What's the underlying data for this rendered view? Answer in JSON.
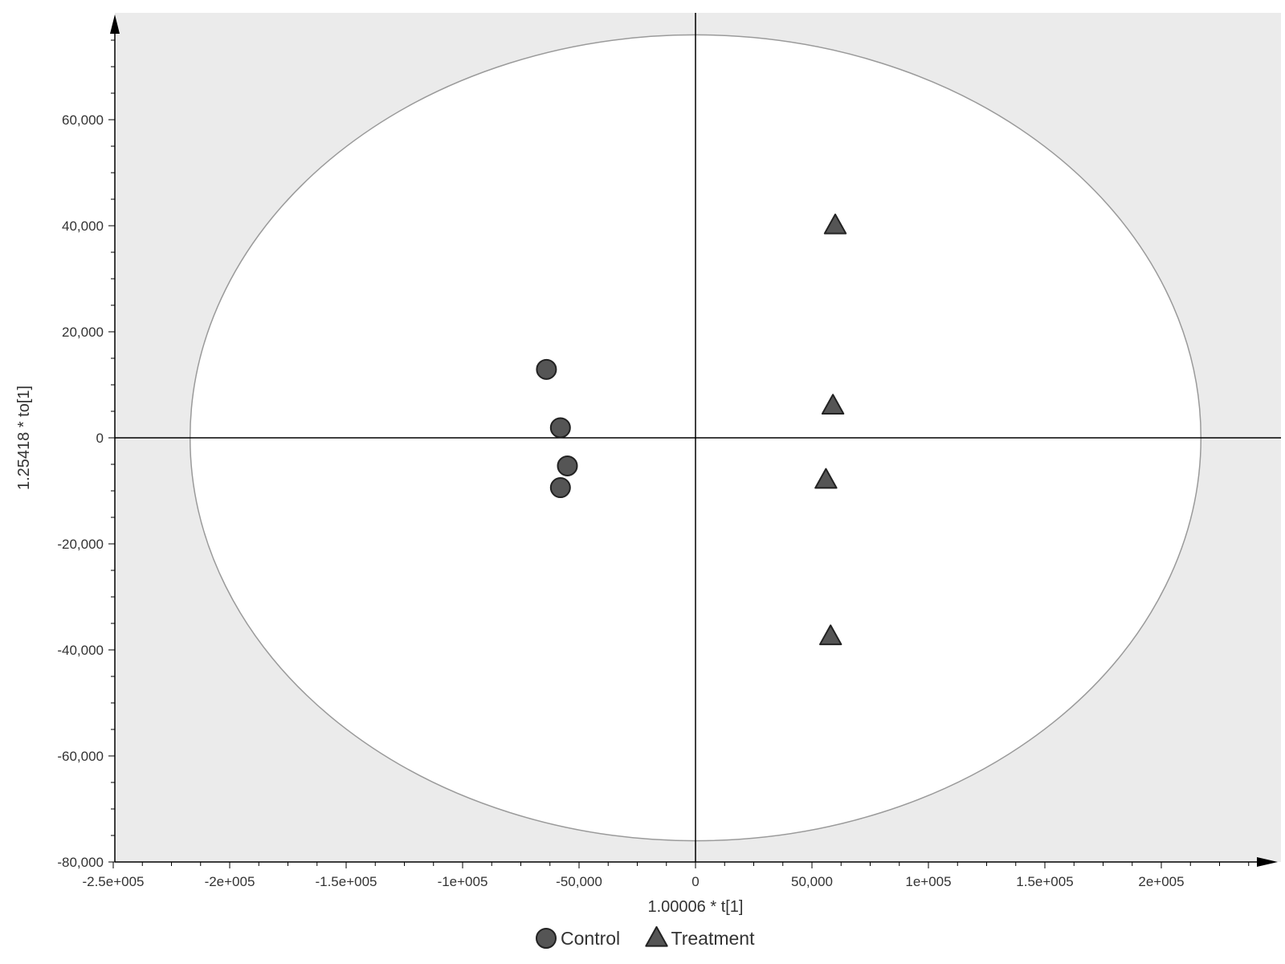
{
  "chart_data": {
    "type": "scatter",
    "title": "",
    "xlabel": "1.00006 * t[1]",
    "ylabel": "1.25418 * to[1]",
    "xlim": [
      -250000,
      250000
    ],
    "ylim": [
      -80000,
      80000
    ],
    "x_ticks": [
      -250000,
      -200000,
      -150000,
      -100000,
      -50000,
      0,
      50000,
      100000,
      150000,
      200000
    ],
    "x_tick_labels": [
      "-2.5e+005",
      "-2e+005",
      "-1.5e+005",
      "-1e+005",
      "-50,000",
      "0",
      "50,000",
      "1e+005",
      "1.5e+005",
      "2e+005"
    ],
    "y_ticks": [
      -80000,
      -60000,
      -40000,
      -20000,
      0,
      20000,
      40000,
      60000
    ],
    "y_tick_labels": [
      "-80,000",
      "-60,000",
      "-40,000",
      "-20,000",
      "0",
      "20,000",
      "40,000",
      "60,000"
    ],
    "grid": false,
    "ellipse": {
      "rx": 217000,
      "ry": 76000,
      "label": "Hotelling's T2 ellipse"
    },
    "legend_position": "bottom-center",
    "series": [
      {
        "name": "Control",
        "marker": "circle",
        "color": "#555555",
        "points": [
          {
            "x": -64000,
            "y": 12900
          },
          {
            "x": -58000,
            "y": 1900
          },
          {
            "x": -55000,
            "y": -5300
          },
          {
            "x": -58000,
            "y": -9400
          }
        ]
      },
      {
        "name": "Treatment",
        "marker": "triangle",
        "color": "#555555",
        "points": [
          {
            "x": 60000,
            "y": 40000
          },
          {
            "x": 59000,
            "y": 6000
          },
          {
            "x": 56000,
            "y": -8000
          },
          {
            "x": 58000,
            "y": -37500
          }
        ]
      }
    ]
  },
  "colors": {
    "plot_background": "#ebebeb",
    "ellipse_fill": "#ffffff",
    "ellipse_stroke": "#9a9a9a",
    "axis": "#000000",
    "marker_fill": "#555555",
    "marker_stroke": "#222222"
  }
}
